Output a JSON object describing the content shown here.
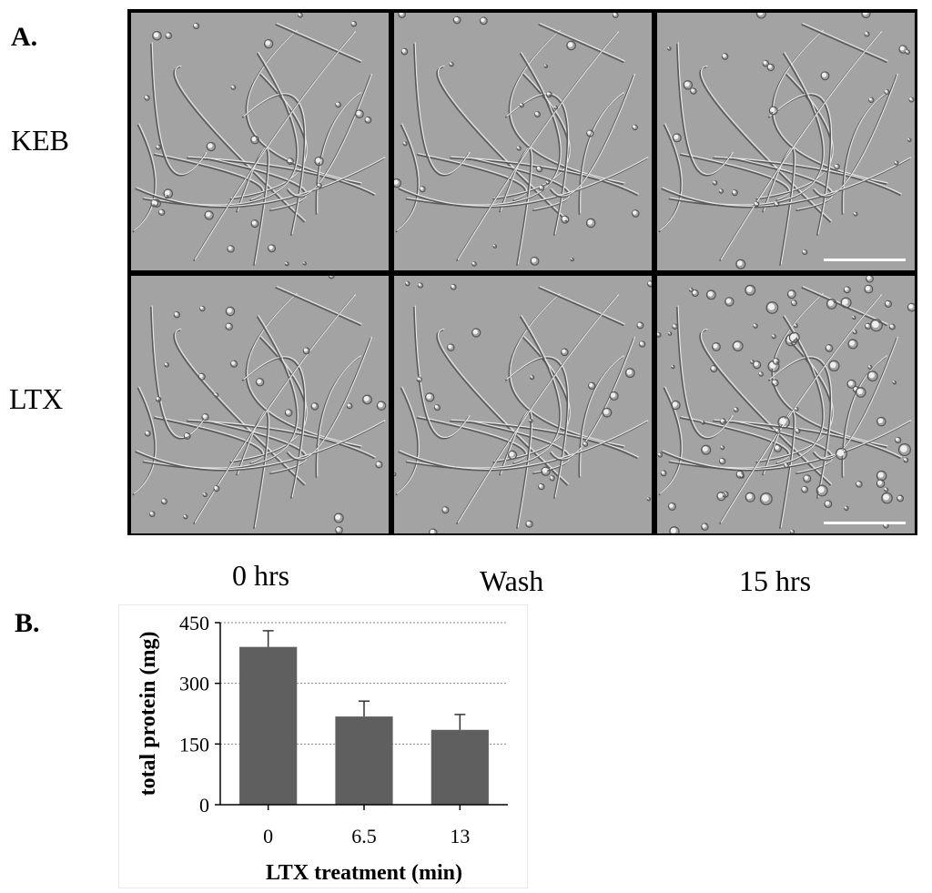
{
  "panel_a": {
    "letter": "A.",
    "rows": [
      "KEB",
      "LTX"
    ],
    "columns": [
      "0 hrs",
      "Wash",
      "15 hrs"
    ]
  },
  "panel_b": {
    "letter": "B."
  },
  "chart_data": {
    "type": "bar",
    "categories": [
      "0",
      "6.5",
      "13"
    ],
    "values": [
      390,
      218,
      185
    ],
    "errors": [
      40,
      38,
      38
    ],
    "ylabel": "total protein (mg)",
    "xlabel": "LTX treatment (min)",
    "ylim": [
      0,
      450
    ],
    "yticks": [
      0,
      150,
      300,
      450
    ],
    "grid": true,
    "bar_color": "#5f5f5f"
  }
}
